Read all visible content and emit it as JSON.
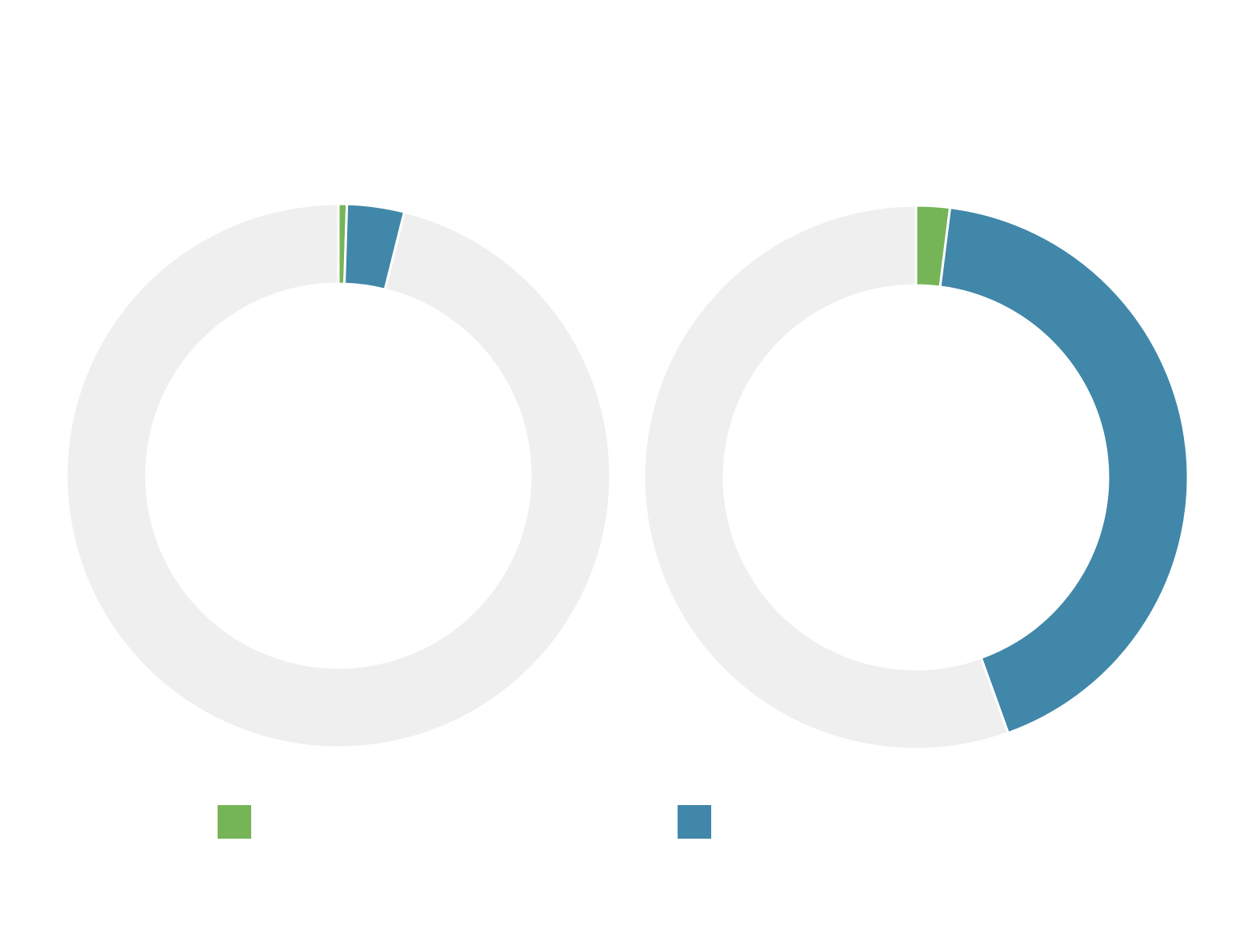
{
  "colors": {
    "series_a": "#76b458",
    "series_b": "#4187a9",
    "remainder": "#efefef",
    "separator": "#ffffff"
  },
  "legend": {
    "position": "bottom",
    "items": [
      {
        "color": "#76b458",
        "label": ""
      },
      {
        "color": "#4187a9",
        "label": ""
      }
    ]
  },
  "chart_data": [
    {
      "type": "pie",
      "style": "donut",
      "slices": [
        {
          "label": "",
          "value": 0.5,
          "color": "#76b458"
        },
        {
          "label": "",
          "value": 3.4,
          "color": "#4187a9"
        },
        {
          "label": "",
          "value": 96.1,
          "color": "#efefef"
        }
      ],
      "title": ""
    },
    {
      "type": "pie",
      "style": "donut",
      "slices": [
        {
          "label": "",
          "value": 2.0,
          "color": "#76b458"
        },
        {
          "label": "",
          "value": 42.5,
          "color": "#4187a9"
        },
        {
          "label": "",
          "value": 55.5,
          "color": "#efefef"
        }
      ],
      "title": ""
    }
  ]
}
